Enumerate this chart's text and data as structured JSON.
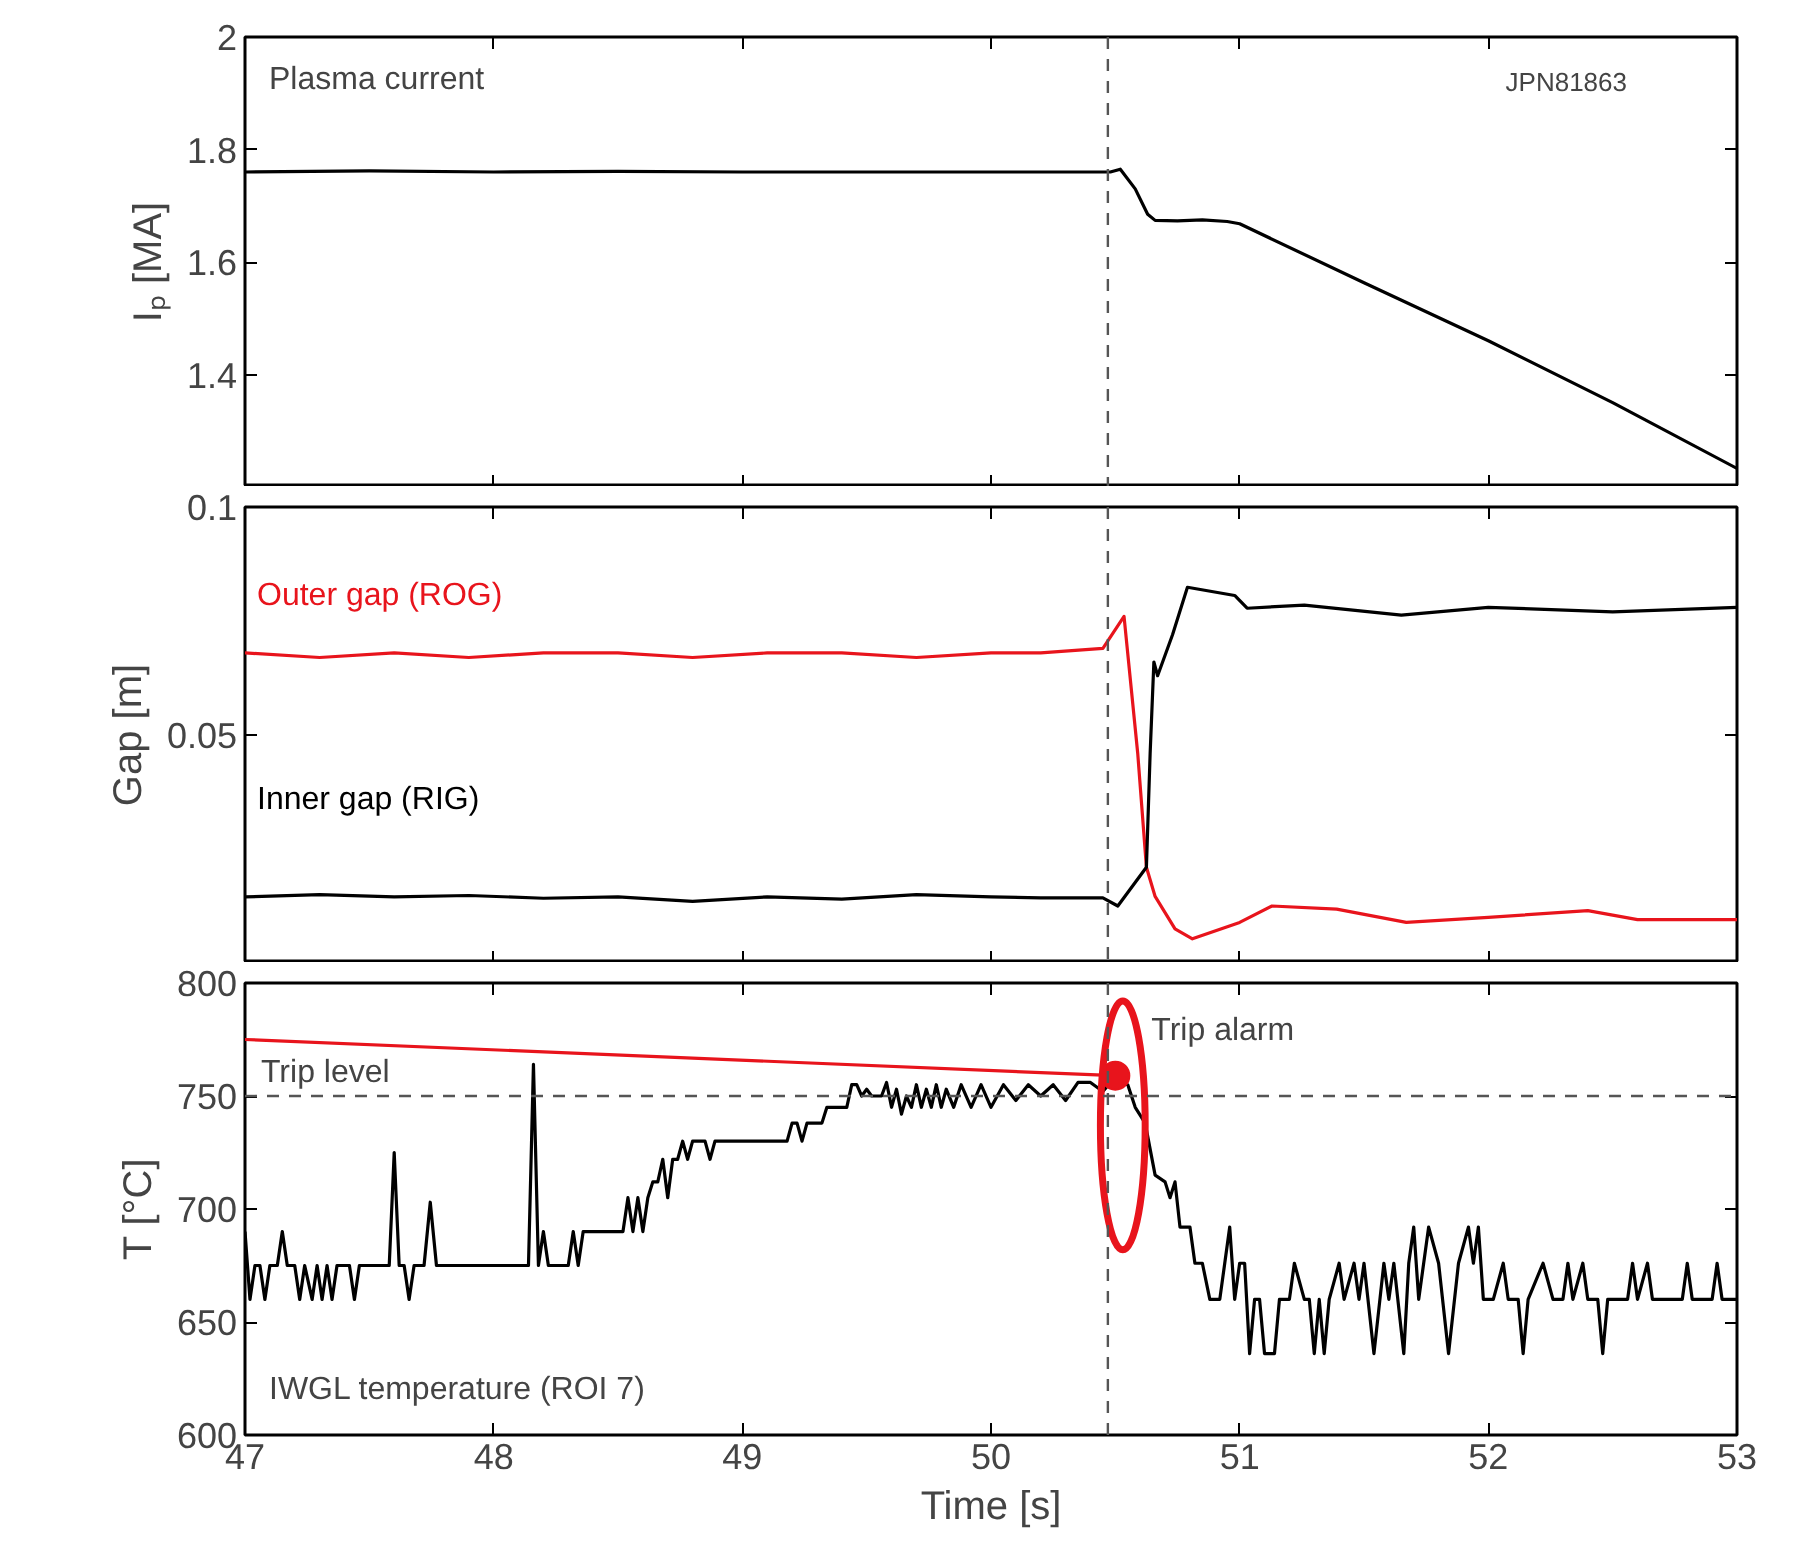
{
  "chart_data": [
    {
      "type": "line",
      "ylabel": "Iₚ [MA]",
      "xlim": [
        47,
        53
      ],
      "xticks": [
        47,
        48,
        49,
        50,
        51,
        52,
        53
      ],
      "ylim": [
        1.2,
        2
      ],
      "yticks": [
        1.4,
        1.6,
        1.8,
        2
      ],
      "tick_labels": "y",
      "annotations": [
        "Plasma current",
        "JPN81863"
      ],
      "ref_lines": [
        {
          "axis": "x",
          "value": 50.47,
          "color": "#555555",
          "line_style": "dashed"
        }
      ],
      "series": [
        {
          "color": "#000000",
          "x": [
            47,
            47.5,
            48,
            48.5,
            49,
            49.5,
            50,
            50.48,
            50.52,
            50.58,
            50.63,
            50.66,
            50.75,
            50.85,
            50.95,
            51.0,
            51.5,
            52.0,
            52.5,
            53.0
          ],
          "values": [
            1.76,
            1.762,
            1.76,
            1.761,
            1.76,
            1.76,
            1.76,
            1.76,
            1.765,
            1.73,
            1.685,
            1.674,
            1.673,
            1.675,
            1.672,
            1.668,
            1.563,
            1.46,
            1.35,
            1.233
          ]
        }
      ]
    },
    {
      "type": "line",
      "ylabel": "Gap [m]",
      "xlim": [
        47,
        53
      ],
      "xticks": [
        47,
        48,
        49,
        50,
        51,
        52,
        53
      ],
      "ylim": [
        0,
        0.1
      ],
      "yticks": [
        0.05,
        0.1
      ],
      "tick_labels": "y",
      "ref_lines": [
        {
          "axis": "x",
          "value": 50.47,
          "color": "#555555",
          "line_style": "dashed"
        }
      ],
      "series": [
        {
          "name": "Outer gap (ROG)",
          "color": "#e8141c",
          "x": [
            47,
            47.3,
            47.6,
            47.9,
            48.2,
            48.5,
            48.8,
            49.1,
            49.4,
            49.7,
            50.0,
            50.2,
            50.45,
            50.535,
            50.59,
            50.625,
            50.66,
            50.74,
            50.81,
            51.0,
            51.13,
            51.39,
            51.67,
            52.0,
            52.4,
            52.6,
            53.0
          ],
          "values": [
            0.068,
            0.067,
            0.068,
            0.067,
            0.068,
            0.068,
            0.067,
            0.068,
            0.068,
            0.067,
            0.068,
            0.068,
            0.069,
            0.076,
            0.046,
            0.021,
            0.0146,
            0.0075,
            0.0053,
            0.0089,
            0.0125,
            0.0118,
            0.0089,
            0.01,
            0.0115,
            0.0095,
            0.0095
          ]
        },
        {
          "name": "Inner gap (RIG)",
          "color": "#000000",
          "x": [
            47,
            47.3,
            47.6,
            47.9,
            48.2,
            48.5,
            48.8,
            49.1,
            49.4,
            49.7,
            50.0,
            50.2,
            50.45,
            50.51,
            50.625,
            50.64,
            50.655,
            50.67,
            50.73,
            50.79,
            50.98,
            51.03,
            51.26,
            51.65,
            52.0,
            52.5,
            53.0
          ],
          "values": [
            0.0145,
            0.015,
            0.0145,
            0.0148,
            0.0142,
            0.0145,
            0.0135,
            0.0145,
            0.014,
            0.015,
            0.0145,
            0.0143,
            0.0143,
            0.0125,
            0.021,
            0.046,
            0.066,
            0.063,
            0.072,
            0.0824,
            0.0806,
            0.0778,
            0.0785,
            0.0763,
            0.078,
            0.077,
            0.078
          ]
        }
      ]
    },
    {
      "type": "line",
      "xlabel": "Time [s]",
      "ylabel": "T [°C]",
      "xlim": [
        47,
        53
      ],
      "xticks": [
        47,
        48,
        49,
        50,
        51,
        52,
        53
      ],
      "ylim": [
        600,
        800
      ],
      "yticks": [
        600,
        650,
        700,
        750,
        800
      ],
      "annotations": [
        {
          "text": "Trip alarm",
          "x": 50.5,
          "y": 759
        },
        "IWGL temperature (ROI 7)"
      ],
      "ref_lines": [
        {
          "axis": "x",
          "value": 50.47,
          "color": "#555555",
          "line_style": "dashed"
        },
        {
          "axis": "y",
          "value": 750,
          "label": "Trip level",
          "color": "#555555",
          "line_style": "dashed"
        }
      ],
      "series": [
        {
          "color": "#000000",
          "x": [
            47.0,
            47.02,
            47.04,
            47.06,
            47.08,
            47.1,
            47.13,
            47.15,
            47.17,
            47.2,
            47.22,
            47.24,
            47.27,
            47.29,
            47.31,
            47.33,
            47.35,
            47.37,
            47.42,
            47.44,
            47.46,
            47.58,
            47.6,
            47.62,
            47.64,
            47.66,
            47.68,
            47.72,
            47.745,
            47.77,
            48.14,
            48.16,
            48.18,
            48.2,
            48.22,
            48.3,
            48.32,
            48.34,
            48.36,
            48.52,
            48.54,
            48.56,
            48.58,
            48.6,
            48.62,
            48.64,
            48.66,
            48.68,
            48.7,
            48.72,
            48.74,
            48.76,
            48.78,
            48.8,
            48.85,
            48.87,
            48.89,
            49.18,
            49.2,
            49.22,
            49.24,
            49.26,
            49.32,
            49.34,
            49.42,
            49.44,
            49.46,
            49.48,
            49.5,
            49.52,
            49.56,
            49.58,
            49.6,
            49.62,
            49.64,
            49.66,
            49.68,
            49.7,
            49.72,
            49.74,
            49.76,
            49.78,
            49.8,
            49.82,
            49.85,
            49.88,
            49.92,
            49.96,
            50.0,
            50.05,
            50.1,
            50.15,
            50.2,
            50.25,
            50.3,
            50.35,
            50.4,
            50.45,
            50.48,
            50.52,
            50.55,
            50.58,
            50.62,
            50.66,
            50.7,
            50.72,
            50.74,
            50.76,
            50.8,
            50.82,
            50.85,
            50.88,
            50.92,
            50.94,
            50.96,
            50.98,
            51.0,
            51.02,
            51.04,
            51.06,
            51.08,
            51.1,
            51.14,
            51.16,
            51.2,
            51.22,
            51.26,
            51.28,
            51.3,
            51.32,
            51.34,
            51.36,
            51.4,
            51.42,
            51.46,
            51.48,
            51.5,
            51.54,
            51.58,
            51.6,
            51.62,
            51.66,
            51.68,
            51.7,
            51.72,
            51.76,
            51.8,
            51.84,
            51.88,
            51.92,
            51.94,
            51.96,
            51.98,
            52.02,
            52.06,
            52.08,
            52.12,
            52.14,
            52.16,
            52.22,
            52.26,
            52.3,
            52.32,
            52.34,
            52.38,
            52.4,
            52.44,
            52.46,
            52.48,
            52.56,
            52.58,
            52.6,
            52.64,
            52.66,
            52.78,
            52.8,
            52.82,
            52.9,
            52.92,
            52.94,
            53.0
          ],
          "values": [
            690,
            660,
            675,
            675,
            660,
            675,
            675,
            690,
            675,
            675,
            660,
            675,
            660,
            675,
            660,
            675,
            660,
            675,
            675,
            660,
            675,
            675,
            725,
            675,
            675,
            660,
            675,
            675,
            703,
            675,
            675,
            764,
            675,
            690,
            675,
            675,
            690,
            675,
            690,
            690,
            705,
            690,
            705,
            690,
            705,
            712,
            712,
            722,
            705,
            722,
            722,
            730,
            722,
            730,
            730,
            722,
            730,
            730,
            738,
            738,
            730,
            738,
            738,
            745,
            745,
            755,
            755,
            750,
            753,
            750,
            750,
            756,
            745,
            753,
            742,
            750,
            745,
            755,
            745,
            753,
            745,
            755,
            745,
            753,
            745,
            755,
            745,
            755,
            745,
            755,
            748,
            755,
            750,
            755,
            748,
            756,
            756,
            752,
            756,
            756,
            755,
            745,
            738,
            715,
            712,
            705,
            712,
            692,
            692,
            676,
            676,
            660,
            660,
            676,
            692,
            660,
            676,
            676,
            636,
            660,
            660,
            636,
            636,
            660,
            660,
            676,
            660,
            660,
            636,
            660,
            636,
            660,
            676,
            660,
            676,
            660,
            676,
            636,
            676,
            660,
            676,
            636,
            676,
            692,
            660,
            692,
            676,
            636,
            676,
            692,
            676,
            692,
            660,
            660,
            676,
            660,
            660,
            636,
            660,
            676,
            660,
            660,
            676,
            660,
            676,
            660,
            660,
            636,
            660,
            660,
            676,
            660,
            676,
            660,
            660,
            676,
            660,
            660,
            676,
            660,
            660
          ]
        },
        {
          "type": "line",
          "color": "#e8141c",
          "x": [
            47,
            50.5
          ],
          "values": [
            775,
            759
          ]
        },
        {
          "type": "scatter",
          "color": "#e8141c",
          "x": [
            50.5
          ],
          "values": [
            759
          ]
        }
      ]
    }
  ]
}
